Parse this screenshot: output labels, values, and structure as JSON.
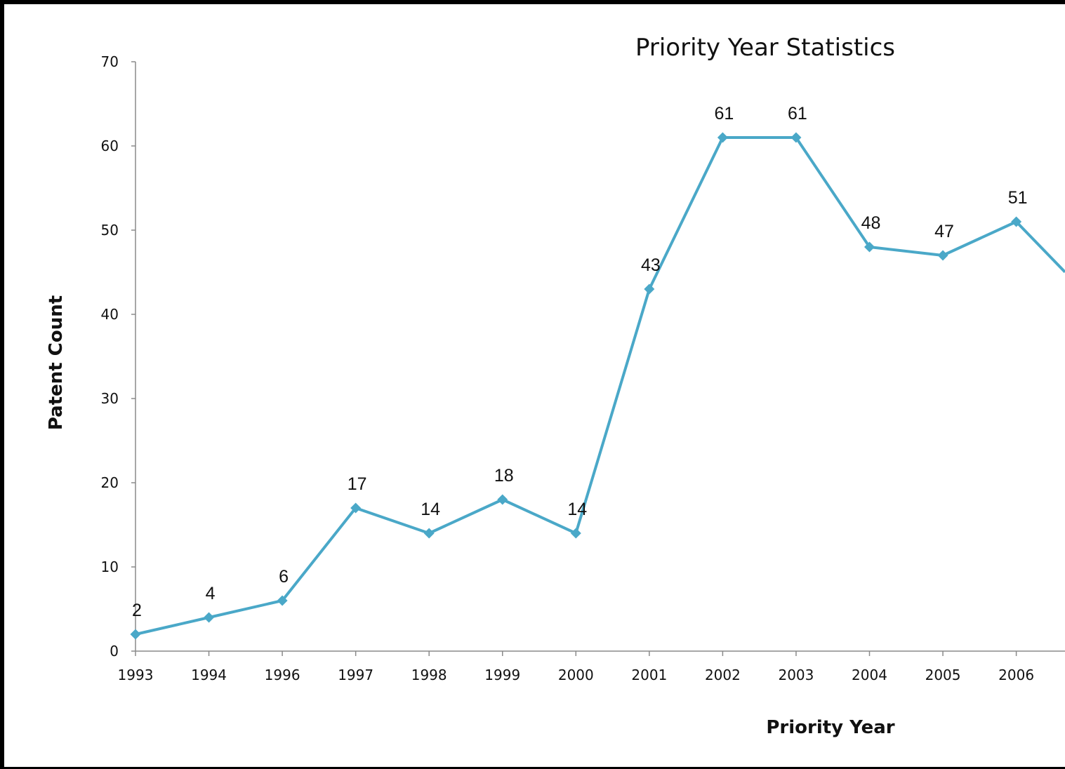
{
  "chart_data": {
    "type": "line",
    "title": "Priority Year Statistics",
    "xlabel": "Priority Year",
    "ylabel": "Patent Count",
    "ylim": [
      0,
      70
    ],
    "yticks": [
      0,
      10,
      20,
      30,
      40,
      50,
      60,
      70
    ],
    "categories": [
      "1993",
      "1994",
      "1996",
      "1997",
      "1998",
      "1999",
      "2000",
      "2001",
      "2002",
      "2003",
      "2004",
      "2005",
      "2006"
    ],
    "values": [
      2,
      4,
      6,
      17,
      14,
      18,
      14,
      43,
      61,
      61,
      48,
      47,
      51
    ],
    "trailing_partial_value": 42,
    "series_color": "#4aa8c8",
    "grid": false,
    "legend": "none",
    "data_labels": true
  }
}
